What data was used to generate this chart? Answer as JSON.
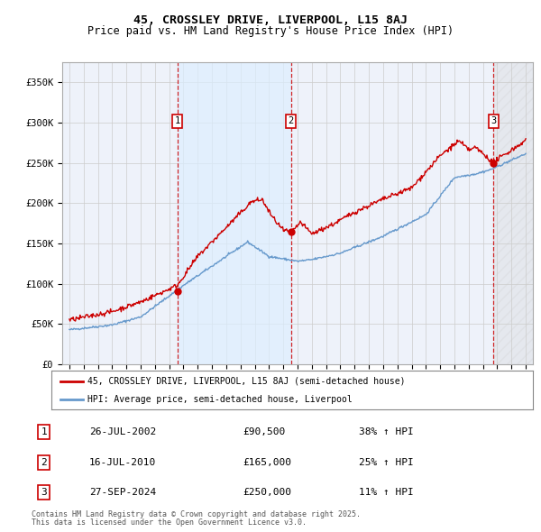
{
  "title1": "45, CROSSLEY DRIVE, LIVERPOOL, L15 8AJ",
  "title2": "Price paid vs. HM Land Registry's House Price Index (HPI)",
  "legend_line1": "45, CROSSLEY DRIVE, LIVERPOOL, L15 8AJ (semi-detached house)",
  "legend_line2": "HPI: Average price, semi-detached house, Liverpool",
  "transactions": [
    {
      "num": 1,
      "date_dec": 2002.57,
      "price": 90500,
      "label": "26-JUL-2002",
      "pct": "38% ↑ HPI"
    },
    {
      "num": 2,
      "date_dec": 2010.54,
      "price": 165000,
      "label": "16-JUL-2010",
      "pct": "25% ↑ HPI"
    },
    {
      "num": 3,
      "date_dec": 2024.74,
      "price": 250000,
      "label": "27-SEP-2024",
      "pct": "11% ↑ HPI"
    }
  ],
  "price_color": "#cc0000",
  "hpi_color": "#6699cc",
  "hpi_fill_color": "#ddeeff",
  "bg_color": "#eef2fa",
  "grid_color": "#cccccc",
  "ylim": [
    0,
    375000
  ],
  "xlim_start": 1994.5,
  "xlim_end": 2027.5,
  "footnote1": "Contains HM Land Registry data © Crown copyright and database right 2025.",
  "footnote2": "This data is licensed under the Open Government Licence v3.0."
}
